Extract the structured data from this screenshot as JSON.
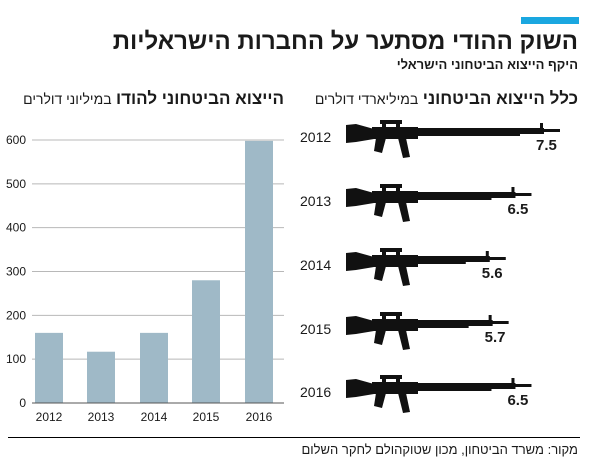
{
  "header": {
    "title": "השוק ההודי מסתער על החברות הישראליות",
    "subtitle": "היקף הייצוא הביטחוני הישראלי"
  },
  "colors": {
    "accent": "#1aa7e0",
    "bar": "#9fb9c7",
    "gun": "#111111"
  },
  "left_chart_header": {
    "bold": "הייצוא הביטחוני להודו",
    "regular": "במיליוני דולרים"
  },
  "right_chart_header": {
    "bold": "כלל הייצוא הביטחוני",
    "regular": "במיליארדי דולרים"
  },
  "icons": {
    "gun": "rifle-icon"
  },
  "footer": {
    "source": "מקור: משרד הביטחון, מכון שטוקהולם לחקר השלום"
  },
  "chart_data": [
    {
      "type": "bar",
      "title": "הייצוא הביטחוני להודו",
      "ylabel": "במיליוני דולרים",
      "categories": [
        "2012",
        "2013",
        "2014",
        "2015",
        "2016"
      ],
      "values": [
        160,
        117,
        160,
        280,
        598
      ],
      "ylim": [
        0,
        600
      ],
      "yticks": [
        0,
        100,
        200,
        300,
        400,
        500,
        600
      ],
      "grid": true
    },
    {
      "type": "bar",
      "orientation": "horizontal-pictogram",
      "title": "כלל הייצוא הביטחוני",
      "ylabel": "במיליארדי דולרים",
      "categories": [
        "2012",
        "2013",
        "2014",
        "2015",
        "2016"
      ],
      "values": [
        7.5,
        6.5,
        5.6,
        5.7,
        6.5
      ],
      "value_labels": [
        "7.5",
        "6.5",
        "5.6",
        "5.7",
        "6.5"
      ]
    }
  ]
}
